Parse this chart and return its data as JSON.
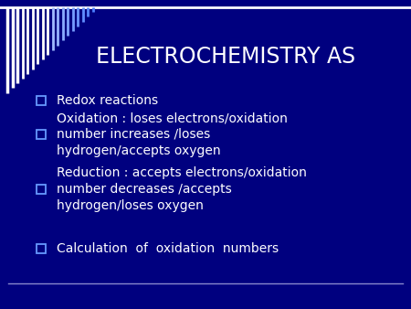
{
  "title": "ELECTROCHEMISTRY AS",
  "background_color": "#00007F",
  "title_color": "#FFFFFF",
  "text_color": "#FFFFFF",
  "bullet_color": "#6699FF",
  "title_fontsize": 17,
  "bullet_fontsize": 10,
  "bullets": [
    "Redox reactions",
    "Oxidation : loses electrons/oxidation\nnumber increases /loses\nhydrogen/accepts oxygen",
    "Reduction : accepts electrons/oxidation\nnumber decreases /accepts\nhydrogen/loses oxygen",
    "Calculation  of  oxidation  numbers"
  ],
  "top_bar_color": "#FFFFFF",
  "bottom_bar_color": "#8888CC",
  "stripe_base_color_dark": "#FFFFFF",
  "stripe_base_color_light": "#4488FF",
  "num_stripes": 18
}
